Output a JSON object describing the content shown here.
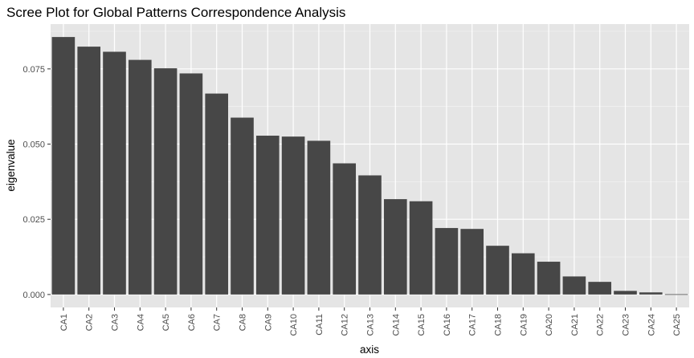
{
  "chart_data": {
    "type": "bar",
    "title": "Scree Plot for Global Patterns Correspondence Analysis",
    "xlabel": "axis",
    "ylabel": "eigenvalue",
    "categories": [
      "CA1",
      "CA2",
      "CA3",
      "CA4",
      "CA5",
      "CA6",
      "CA7",
      "CA8",
      "CA9",
      "CA10",
      "CA11",
      "CA12",
      "CA13",
      "CA14",
      "CA15",
      "CA16",
      "CA17",
      "CA18",
      "CA19",
      "CA20",
      "CA21",
      "CA22",
      "CA23",
      "CA24",
      "CA25"
    ],
    "values": [
      0.0856,
      0.0824,
      0.0807,
      0.078,
      0.0752,
      0.0735,
      0.0668,
      0.0588,
      0.0528,
      0.0525,
      0.0511,
      0.0436,
      0.0396,
      0.0317,
      0.031,
      0.0221,
      0.0218,
      0.0162,
      0.0137,
      0.0109,
      0.006,
      0.0042,
      0.0012,
      0.0007,
      0.0001
    ],
    "yticks": [
      0.0,
      0.025,
      0.05,
      0.075
    ],
    "ytick_labels": [
      "0.000",
      "0.025",
      "0.050",
      "0.075"
    ],
    "ylim": [
      -0.0043,
      0.0899
    ],
    "grid": true,
    "colors": {
      "panel_background": "#e5e5e5",
      "grid_major": "#ffffff",
      "bar_fill": "#474747"
    }
  }
}
